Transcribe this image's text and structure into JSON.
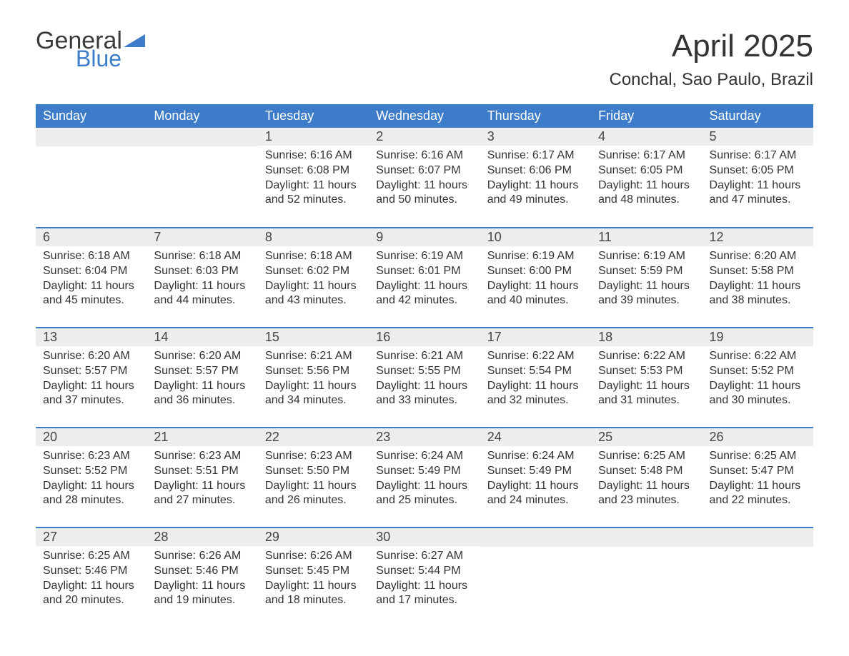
{
  "logo": {
    "text_general": "General",
    "text_blue": "Blue",
    "flag_color": "#3d7cc9"
  },
  "title": "April 2025",
  "location": "Conchal, Sao Paulo, Brazil",
  "colors": {
    "header_bg": "#3d7cc9",
    "header_text": "#ffffff",
    "row_separator": "#3d7cc9",
    "daynum_bg": "#ededed",
    "body_text": "#333333",
    "page_bg": "#ffffff"
  },
  "day_headers": [
    "Sunday",
    "Monday",
    "Tuesday",
    "Wednesday",
    "Thursday",
    "Friday",
    "Saturday"
  ],
  "weeks": [
    [
      null,
      null,
      {
        "n": "1",
        "sr": "Sunrise: 6:16 AM",
        "ss": "Sunset: 6:08 PM",
        "d1": "Daylight: 11 hours",
        "d2": "and 52 minutes."
      },
      {
        "n": "2",
        "sr": "Sunrise: 6:16 AM",
        "ss": "Sunset: 6:07 PM",
        "d1": "Daylight: 11 hours",
        "d2": "and 50 minutes."
      },
      {
        "n": "3",
        "sr": "Sunrise: 6:17 AM",
        "ss": "Sunset: 6:06 PM",
        "d1": "Daylight: 11 hours",
        "d2": "and 49 minutes."
      },
      {
        "n": "4",
        "sr": "Sunrise: 6:17 AM",
        "ss": "Sunset: 6:05 PM",
        "d1": "Daylight: 11 hours",
        "d2": "and 48 minutes."
      },
      {
        "n": "5",
        "sr": "Sunrise: 6:17 AM",
        "ss": "Sunset: 6:05 PM",
        "d1": "Daylight: 11 hours",
        "d2": "and 47 minutes."
      }
    ],
    [
      {
        "n": "6",
        "sr": "Sunrise: 6:18 AM",
        "ss": "Sunset: 6:04 PM",
        "d1": "Daylight: 11 hours",
        "d2": "and 45 minutes."
      },
      {
        "n": "7",
        "sr": "Sunrise: 6:18 AM",
        "ss": "Sunset: 6:03 PM",
        "d1": "Daylight: 11 hours",
        "d2": "and 44 minutes."
      },
      {
        "n": "8",
        "sr": "Sunrise: 6:18 AM",
        "ss": "Sunset: 6:02 PM",
        "d1": "Daylight: 11 hours",
        "d2": "and 43 minutes."
      },
      {
        "n": "9",
        "sr": "Sunrise: 6:19 AM",
        "ss": "Sunset: 6:01 PM",
        "d1": "Daylight: 11 hours",
        "d2": "and 42 minutes."
      },
      {
        "n": "10",
        "sr": "Sunrise: 6:19 AM",
        "ss": "Sunset: 6:00 PM",
        "d1": "Daylight: 11 hours",
        "d2": "and 40 minutes."
      },
      {
        "n": "11",
        "sr": "Sunrise: 6:19 AM",
        "ss": "Sunset: 5:59 PM",
        "d1": "Daylight: 11 hours",
        "d2": "and 39 minutes."
      },
      {
        "n": "12",
        "sr": "Sunrise: 6:20 AM",
        "ss": "Sunset: 5:58 PM",
        "d1": "Daylight: 11 hours",
        "d2": "and 38 minutes."
      }
    ],
    [
      {
        "n": "13",
        "sr": "Sunrise: 6:20 AM",
        "ss": "Sunset: 5:57 PM",
        "d1": "Daylight: 11 hours",
        "d2": "and 37 minutes."
      },
      {
        "n": "14",
        "sr": "Sunrise: 6:20 AM",
        "ss": "Sunset: 5:57 PM",
        "d1": "Daylight: 11 hours",
        "d2": "and 36 minutes."
      },
      {
        "n": "15",
        "sr": "Sunrise: 6:21 AM",
        "ss": "Sunset: 5:56 PM",
        "d1": "Daylight: 11 hours",
        "d2": "and 34 minutes."
      },
      {
        "n": "16",
        "sr": "Sunrise: 6:21 AM",
        "ss": "Sunset: 5:55 PM",
        "d1": "Daylight: 11 hours",
        "d2": "and 33 minutes."
      },
      {
        "n": "17",
        "sr": "Sunrise: 6:22 AM",
        "ss": "Sunset: 5:54 PM",
        "d1": "Daylight: 11 hours",
        "d2": "and 32 minutes."
      },
      {
        "n": "18",
        "sr": "Sunrise: 6:22 AM",
        "ss": "Sunset: 5:53 PM",
        "d1": "Daylight: 11 hours",
        "d2": "and 31 minutes."
      },
      {
        "n": "19",
        "sr": "Sunrise: 6:22 AM",
        "ss": "Sunset: 5:52 PM",
        "d1": "Daylight: 11 hours",
        "d2": "and 30 minutes."
      }
    ],
    [
      {
        "n": "20",
        "sr": "Sunrise: 6:23 AM",
        "ss": "Sunset: 5:52 PM",
        "d1": "Daylight: 11 hours",
        "d2": "and 28 minutes."
      },
      {
        "n": "21",
        "sr": "Sunrise: 6:23 AM",
        "ss": "Sunset: 5:51 PM",
        "d1": "Daylight: 11 hours",
        "d2": "and 27 minutes."
      },
      {
        "n": "22",
        "sr": "Sunrise: 6:23 AM",
        "ss": "Sunset: 5:50 PM",
        "d1": "Daylight: 11 hours",
        "d2": "and 26 minutes."
      },
      {
        "n": "23",
        "sr": "Sunrise: 6:24 AM",
        "ss": "Sunset: 5:49 PM",
        "d1": "Daylight: 11 hours",
        "d2": "and 25 minutes."
      },
      {
        "n": "24",
        "sr": "Sunrise: 6:24 AM",
        "ss": "Sunset: 5:49 PM",
        "d1": "Daylight: 11 hours",
        "d2": "and 24 minutes."
      },
      {
        "n": "25",
        "sr": "Sunrise: 6:25 AM",
        "ss": "Sunset: 5:48 PM",
        "d1": "Daylight: 11 hours",
        "d2": "and 23 minutes."
      },
      {
        "n": "26",
        "sr": "Sunrise: 6:25 AM",
        "ss": "Sunset: 5:47 PM",
        "d1": "Daylight: 11 hours",
        "d2": "and 22 minutes."
      }
    ],
    [
      {
        "n": "27",
        "sr": "Sunrise: 6:25 AM",
        "ss": "Sunset: 5:46 PM",
        "d1": "Daylight: 11 hours",
        "d2": "and 20 minutes."
      },
      {
        "n": "28",
        "sr": "Sunrise: 6:26 AM",
        "ss": "Sunset: 5:46 PM",
        "d1": "Daylight: 11 hours",
        "d2": "and 19 minutes."
      },
      {
        "n": "29",
        "sr": "Sunrise: 6:26 AM",
        "ss": "Sunset: 5:45 PM",
        "d1": "Daylight: 11 hours",
        "d2": "and 18 minutes."
      },
      {
        "n": "30",
        "sr": "Sunrise: 6:27 AM",
        "ss": "Sunset: 5:44 PM",
        "d1": "Daylight: 11 hours",
        "d2": "and 17 minutes."
      },
      null,
      null,
      null
    ]
  ]
}
